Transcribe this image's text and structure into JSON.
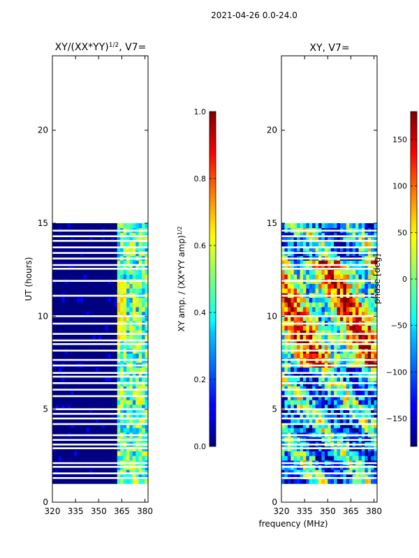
{
  "suptitle": "2021-04-26 0.0-24.0",
  "shared_xlabel": "frequency (MHz)",
  "chart_data": [
    {
      "type": "heatmap",
      "title": "XY/(XX*YY)",
      "title_sup": "1/2",
      "title_suffix": ", V7=",
      "xlabel": "",
      "ylabel": "UT (hours)",
      "xlim": [
        320,
        382
      ],
      "ylim": [
        0,
        24
      ],
      "xticks": [
        320,
        335,
        350,
        365,
        380
      ],
      "yticks": [
        0,
        5,
        10,
        15,
        20
      ],
      "data_time_range_hours": [
        1.0,
        14.85
      ],
      "gap_rows_hours": [
        1.3,
        1.55,
        1.9,
        2.1,
        2.9,
        3.1,
        3.35,
        3.6,
        4.2,
        4.5,
        4.75,
        5.0,
        5.7,
        6.05,
        6.4,
        6.75,
        6.95,
        7.35,
        7.65,
        8.15,
        8.5,
        8.7,
        9.05,
        9.6,
        10.0,
        11.1,
        11.9,
        12.55,
        12.75,
        13.1,
        13.4,
        13.7,
        14.05,
        14.3,
        14.6
      ],
      "bright_band_mhz": [
        362,
        381
      ],
      "colorbar": {
        "label": "XY amp. / (XX*YY amp)",
        "label_sup": "1/2",
        "range": [
          0.0,
          1.0
        ],
        "ticks": [
          "0.0",
          "0.2",
          "0.4",
          "0.6",
          "0.8",
          "1.0"
        ]
      }
    },
    {
      "type": "heatmap",
      "title": "XY, V7=",
      "xlabel": "frequency (MHz)",
      "ylabel": "",
      "xlim": [
        320,
        382
      ],
      "ylim": [
        0,
        24
      ],
      "xticks": [
        320,
        335,
        350,
        365,
        380
      ],
      "yticks": [
        0,
        5,
        10,
        15,
        20
      ],
      "data_time_range_hours": [
        1.0,
        14.85
      ],
      "gap_rows_hours": [
        1.3,
        1.55,
        1.9,
        2.1,
        2.9,
        3.1,
        3.35,
        3.6,
        4.2,
        4.5,
        4.75,
        5.0,
        5.7,
        6.05,
        6.4,
        6.75,
        6.95,
        7.35,
        7.65,
        8.15,
        8.5,
        8.7,
        9.05,
        9.6,
        10.0,
        11.1,
        11.9,
        12.55,
        12.75,
        13.1,
        13.4,
        13.7,
        14.05,
        14.3,
        14.6
      ],
      "colorbar": {
        "label": "phase [deg]",
        "range": [
          -180,
          180
        ],
        "ticks": [
          "−150",
          "−100",
          "−50",
          "0",
          "50",
          "100",
          "150"
        ],
        "tick_values": [
          -150,
          -100,
          -50,
          0,
          50,
          100,
          150
        ]
      }
    }
  ]
}
